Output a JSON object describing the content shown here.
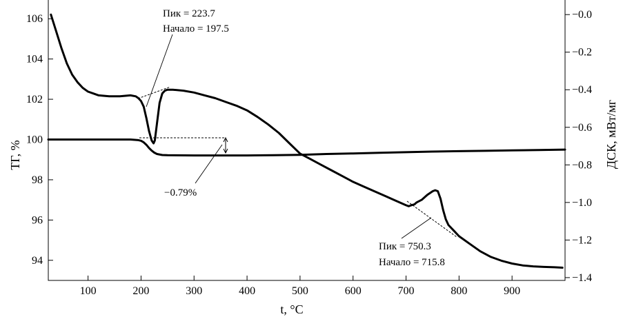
{
  "chart_data": {
    "type": "line",
    "xlabel": "t, °C",
    "ylabel_left": "ТГ, %",
    "ylabel_right": "ДСК, мВт/мг",
    "xlim": [
      25,
      1000
    ],
    "ylim_left": [
      93,
      107
    ],
    "ylim_right": [
      -1.415,
      0.085
    ],
    "x_ticks": [
      "100",
      "200",
      "300",
      "400",
      "500",
      "600",
      "700",
      "800",
      "900"
    ],
    "y_left_ticks": [
      "94",
      "96",
      "98",
      "100",
      "102",
      "104",
      "106"
    ],
    "y_right_ticks": [
      "−0.0",
      "−0.2",
      "−0.4",
      "−0.6",
      "−0.8",
      "−1.0",
      "−1.2",
      "−1.4"
    ],
    "grid": false,
    "series": [
      {
        "axis": "right",
        "x": [
          30,
          40,
          50,
          60,
          70,
          80,
          90,
          100,
          110,
          120,
          140,
          160,
          180,
          190,
          195,
          200,
          205,
          210,
          215,
          220,
          223.7,
          226,
          230,
          235,
          240,
          245,
          250,
          260,
          280,
          300,
          320,
          340,
          360,
          380,
          400,
          420,
          440,
          460,
          480,
          500,
          520,
          540,
          560,
          580,
          600,
          620,
          640,
          660,
          680,
          700,
          705,
          710,
          715.8,
          720,
          730,
          740,
          750.3,
          755,
          760,
          765,
          770,
          775,
          780,
          790,
          800,
          820,
          840,
          860,
          880,
          900,
          920,
          940,
          960,
          980,
          995
        ],
        "y": [
          0.0,
          -0.09,
          -0.18,
          -0.26,
          -0.32,
          -0.36,
          -0.39,
          -0.41,
          -0.42,
          -0.43,
          -0.435,
          -0.435,
          -0.43,
          -0.435,
          -0.445,
          -0.46,
          -0.49,
          -0.55,
          -0.62,
          -0.67,
          -0.685,
          -0.67,
          -0.58,
          -0.47,
          -0.42,
          -0.405,
          -0.4,
          -0.4,
          -0.405,
          -0.415,
          -0.43,
          -0.445,
          -0.465,
          -0.485,
          -0.51,
          -0.545,
          -0.585,
          -0.63,
          -0.685,
          -0.74,
          -0.77,
          -0.8,
          -0.83,
          -0.86,
          -0.89,
          -0.915,
          -0.94,
          -0.965,
          -0.99,
          -1.015,
          -1.02,
          -1.015,
          -1.01,
          -1.0,
          -0.985,
          -0.96,
          -0.94,
          -0.935,
          -0.94,
          -0.98,
          -1.04,
          -1.09,
          -1.12,
          -1.15,
          -1.18,
          -1.22,
          -1.26,
          -1.29,
          -1.31,
          -1.325,
          -1.335,
          -1.34,
          -1.343,
          -1.345,
          -1.347
        ]
      },
      {
        "axis": "left",
        "x": [
          25,
          100,
          150,
          180,
          195,
          200,
          205,
          210,
          215,
          220,
          225,
          230,
          240,
          250,
          300,
          350,
          400,
          450,
          500,
          550,
          600,
          650,
          700,
          750,
          800,
          850,
          900,
          950,
          1000
        ],
        "y": [
          100.0,
          100.0,
          100.0,
          100.0,
          99.97,
          99.94,
          99.86,
          99.74,
          99.58,
          99.45,
          99.35,
          99.28,
          99.23,
          99.22,
          99.21,
          99.21,
          99.21,
          99.22,
          99.24,
          99.28,
          99.31,
          99.34,
          99.37,
          99.4,
          99.42,
          99.44,
          99.46,
          99.48,
          99.5
        ]
      }
    ],
    "annotations": [
      {
        "text": "Пик = 223.7"
      },
      {
        "text": "Начало = 197.5"
      },
      {
        "text": "−0.79%"
      },
      {
        "text": "Пик = 750.3"
      },
      {
        "text": "Начало = 715.8"
      }
    ]
  }
}
